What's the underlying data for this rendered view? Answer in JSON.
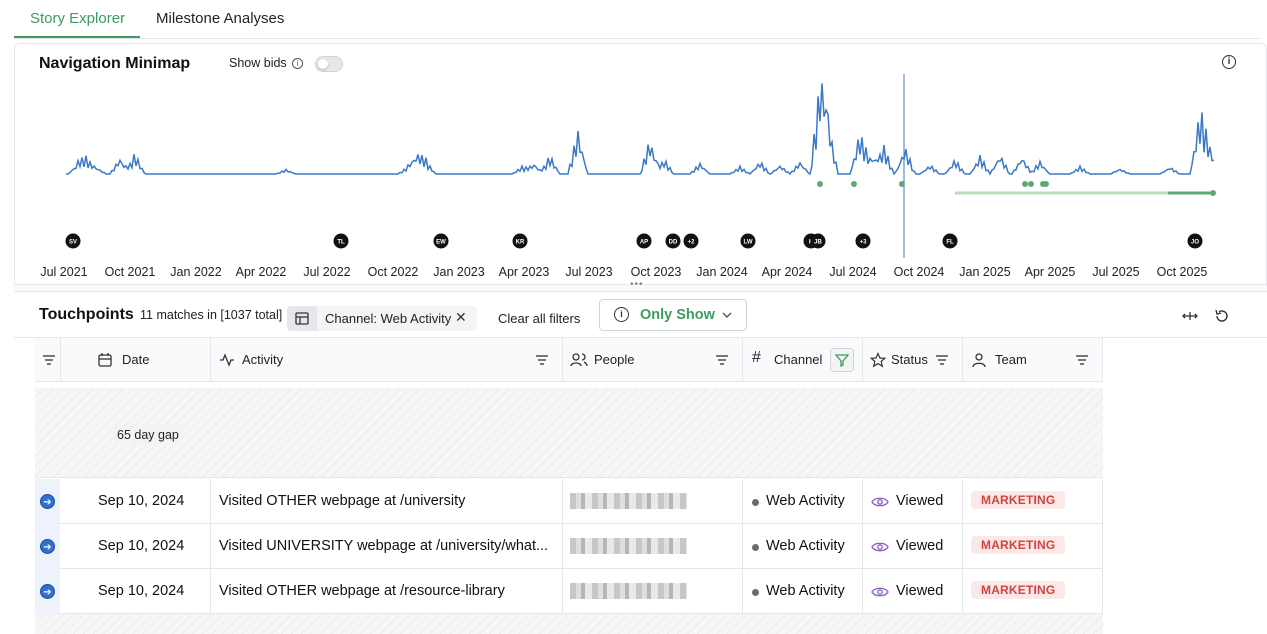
{
  "tabs": [
    {
      "label": "Story Explorer",
      "active": true
    },
    {
      "label": "Milestone Analyses",
      "active": false
    }
  ],
  "minimap": {
    "title": "Navigation Minimap",
    "show_bids_label": "Show bids",
    "show_bids_on": false,
    "x_axis_labels": [
      "Jul 2021",
      "Oct 2021",
      "Jan 2022",
      "Apr 2022",
      "Jul 2022",
      "Oct 2022",
      "Jan 2023",
      "Apr 2023",
      "Jul 2023",
      "Oct 2023",
      "Jan 2024",
      "Apr 2024",
      "Jul 2024",
      "Oct 2024",
      "Jan 2025",
      "Apr 2025",
      "Jul 2025",
      "Oct 2025"
    ],
    "avatars": [
      "SV",
      "TL",
      "EW",
      "KR",
      "AP",
      "DD",
      "+2",
      "LW",
      "K",
      "JB",
      "+3",
      "FL",
      "JO"
    ],
    "line_color": "#3a78c9",
    "milestone_color": "#5fa875"
  },
  "touchpoints": {
    "title": "Touchpoints",
    "count_text": "11 matches in [1037 total]",
    "filter_chip": "Channel: Web Activity",
    "clear_filters": "Clear all filters",
    "only_show": "Only Show",
    "columns": [
      "Date",
      "Activity",
      "People",
      "Channel",
      "Status",
      "Team"
    ],
    "gap_label": "65 day gap",
    "rows": [
      {
        "date": "Sep 10, 2024",
        "activity": "Visited OTHER webpage at /university",
        "channel": "Web Activity",
        "status": "Viewed",
        "team": "MARKETING"
      },
      {
        "date": "Sep 10, 2024",
        "activity": "Visited UNIVERSITY webpage at /university/what...",
        "channel": "Web Activity",
        "status": "Viewed",
        "team": "MARKETING"
      },
      {
        "date": "Sep 10, 2024",
        "activity": "Visited OTHER webpage at /resource-library",
        "channel": "Web Activity",
        "status": "Viewed",
        "team": "MARKETING"
      }
    ]
  }
}
